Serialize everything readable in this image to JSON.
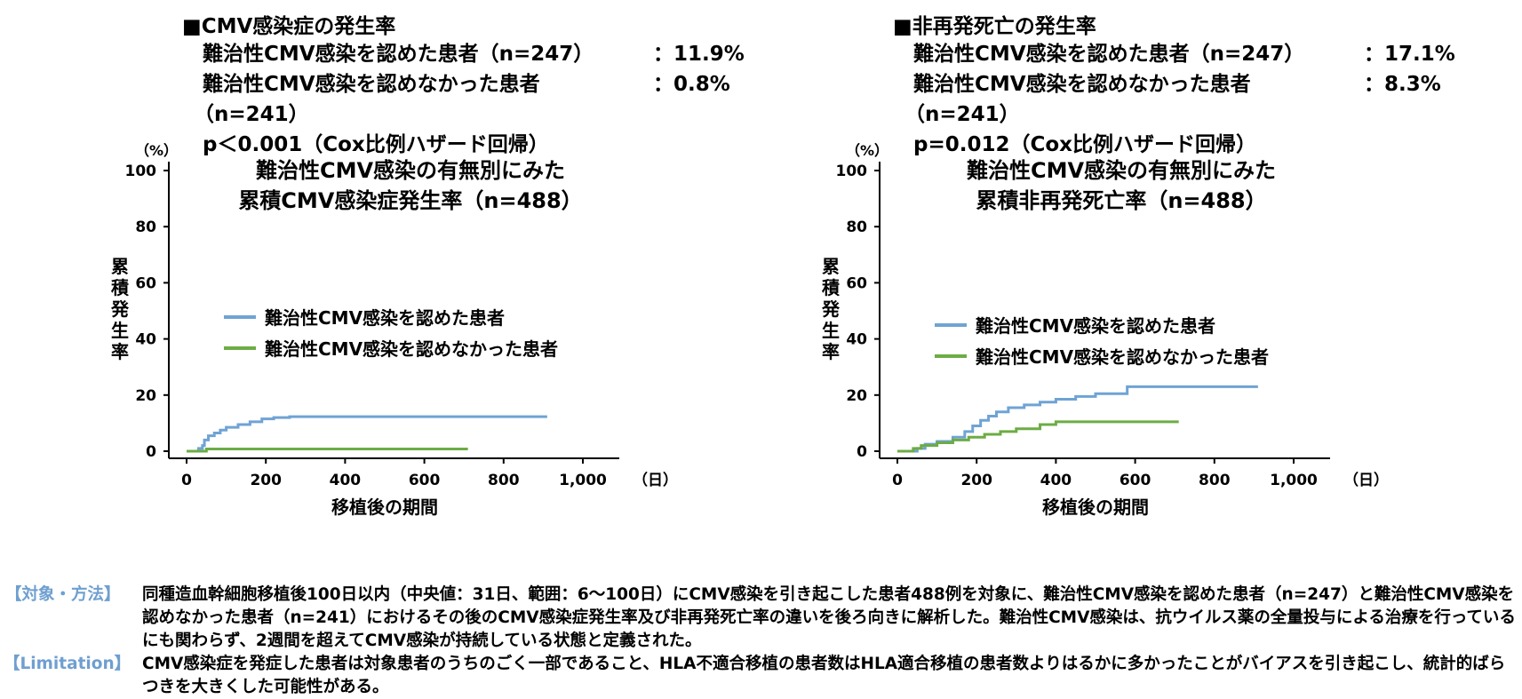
{
  "charts": [
    {
      "header": {
        "title": "■CMV感染症の発生率",
        "row1_label": "難治性CMV感染を認めた患者（n=247）",
        "row1_value": "：11.9%",
        "row2_label": "難治性CMV感染を認めなかった患者",
        "row2_value": "：0.8%",
        "row2_n": "（n=241）",
        "pvalue": "p＜0.001（Cox比例ハザード回帰）"
      },
      "chart_title_1": "難治性CMV感染の有無別にみた",
      "chart_title_2": "累積CMV感染症発生率（n=488）",
      "ylabel": "累積発生率",
      "yunit": "（%）",
      "xlabel": "移植後の期間",
      "xunit": "（日）"
    },
    {
      "header": {
        "title": "■非再発死亡の発生率",
        "row1_label": "難治性CMV感染を認めた患者（n=247）",
        "row1_value": "：17.1%",
        "row2_label": "難治性CMV感染を認めなかった患者",
        "row2_value": "：8.3%",
        "row2_n": "（n=241）",
        "pvalue": "p=0.012（Cox比例ハザード回帰）"
      },
      "chart_title_1": "難治性CMV感染の有無別にみた",
      "chart_title_2": "累積非再発死亡率（n=488）",
      "ylabel": "累積発生率",
      "yunit": "（%）",
      "xlabel": "移植後の期間",
      "xunit": "（日）"
    }
  ],
  "chart_data": [
    {
      "type": "line",
      "title": "難治性CMV感染の有無別にみた 累積CMV感染症発生率（n=488）",
      "xlabel": "移植後の期間",
      "ylabel": "累積発生率",
      "xlim": [
        0,
        1000
      ],
      "ylim": [
        0,
        100
      ],
      "xticks": [
        0,
        200,
        400,
        600,
        800,
        1000
      ],
      "xtick_labels": [
        "0",
        "200",
        "400",
        "600",
        "800",
        "1,000"
      ],
      "yticks": [
        0,
        20,
        40,
        60,
        80,
        100
      ],
      "legend_position": "center-left",
      "series": [
        {
          "name": "難治性CMV感染を認めた患者",
          "color": "#6fa3d4",
          "x": [
            0,
            30,
            40,
            45,
            55,
            70,
            85,
            100,
            130,
            160,
            190,
            220,
            260,
            300,
            910
          ],
          "y": [
            0,
            1,
            2,
            4,
            5.5,
            6.5,
            7.5,
            8.5,
            9.5,
            10.5,
            11.5,
            12,
            12.3,
            12.3,
            12.3
          ]
        },
        {
          "name": "難治性CMV感染を認めなかった患者",
          "color": "#6cac45",
          "x": [
            0,
            45,
            50,
            710
          ],
          "y": [
            0,
            0,
            0.8,
            0.8
          ]
        }
      ]
    },
    {
      "type": "line",
      "title": "難治性CMV感染の有無別にみた 累積非再発死亡率（n=488）",
      "xlabel": "移植後の期間",
      "ylabel": "累積発生率",
      "xlim": [
        0,
        1000
      ],
      "ylim": [
        0,
        100
      ],
      "xticks": [
        0,
        200,
        400,
        600,
        800,
        1000
      ],
      "xtick_labels": [
        "0",
        "200",
        "400",
        "600",
        "800",
        "1,000"
      ],
      "yticks": [
        0,
        20,
        40,
        60,
        80,
        100
      ],
      "legend_position": "center-left",
      "series": [
        {
          "name": "難治性CMV感染を認めた患者",
          "color": "#6fa3d4",
          "x": [
            0,
            50,
            70,
            100,
            140,
            170,
            190,
            210,
            230,
            250,
            280,
            320,
            360,
            400,
            450,
            500,
            580,
            910
          ],
          "y": [
            0,
            1,
            2.5,
            3.5,
            5,
            7,
            9,
            11,
            12.5,
            14,
            15.5,
            16.5,
            17.5,
            18.5,
            19.5,
            20.5,
            23,
            23
          ]
        },
        {
          "name": "難治性CMV感染を認めなかった患者",
          "color": "#6cac45",
          "x": [
            0,
            40,
            60,
            100,
            140,
            180,
            220,
            260,
            300,
            360,
            400,
            710
          ],
          "y": [
            0,
            1,
            2,
            3,
            4,
            5,
            6,
            7,
            8,
            9.5,
            10.5,
            10.5
          ]
        }
      ]
    }
  ],
  "footer": {
    "methods_label": "【対象・方法】",
    "methods_text": "同種造血幹細胞移植後100日以内（中央値：31日、範囲：6〜100日）にCMV感染を引き起こした患者488例を対象に、難治性CMV感染を認めた患者（n=247）と難治性CMV感染を認めなかった患者（n=241）におけるその後のCMV感染症発生率及び非再発死亡率の違いを後ろ向きに解析した。難治性CMV感染は、抗ウイルス薬の全量投与による治療を行っているにも関わらず、2週間を超えてCMV感染が持続している状態と定義された。",
    "limitation_label": "【Limitation】",
    "limitation_text": "CMV感染症を発症した患者は対象患者のうちのごく一部であること、HLA不適合移植の患者数はHLA適合移植の患者数よりはるかに多かったことがバイアスを引き起こし、統計的ばらつきを大きくした可能性がある。"
  }
}
